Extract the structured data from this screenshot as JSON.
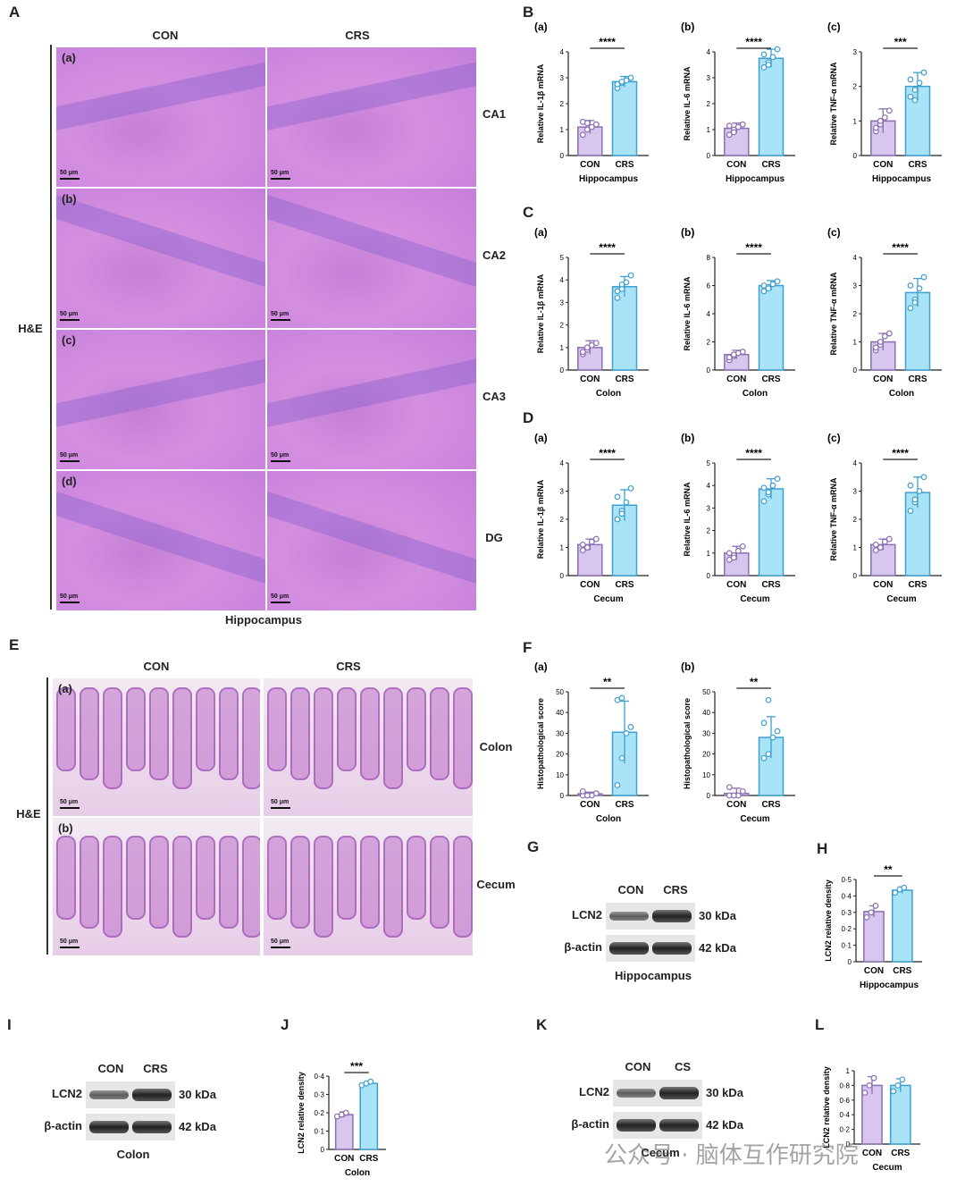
{
  "panel_letters": {
    "A": "A",
    "B": "B",
    "C": "C",
    "D": "D",
    "E": "E",
    "F": "F",
    "G": "G",
    "H": "H",
    "I": "I",
    "J": "J",
    "K": "K",
    "L": "L"
  },
  "panelA": {
    "col_con": "CON",
    "col_crs": "CRS",
    "stain": "H&E",
    "caption": "Hippocampus",
    "rows": [
      {
        "sub": "(a)",
        "region": "CA1"
      },
      {
        "sub": "(b)",
        "region": "CA2"
      },
      {
        "sub": "(c)",
        "region": "CA3"
      },
      {
        "sub": "(d)",
        "region": "DG"
      }
    ],
    "scale": "50 μm"
  },
  "panelE": {
    "col_con": "CON",
    "col_crs": "CRS",
    "stain": "H&E",
    "rows": [
      {
        "sub": "(a)",
        "region": "Colon"
      },
      {
        "sub": "(b)",
        "region": "Cecum"
      }
    ],
    "scale": "50 μm"
  },
  "colors": {
    "con": "#d7c7ee",
    "con_stroke": "#8b6fb0",
    "crs": "#a8e3f7",
    "crs_stroke": "#3f9fd0"
  },
  "charts": [
    {
      "id": "B-a",
      "sub": "(a)",
      "ylabel": "Relative IL-1β mRNA",
      "xlabel": "Hippocampus",
      "ymax": 4,
      "ticks": [
        "0",
        "1",
        "2",
        "3",
        "4"
      ],
      "sig": "****",
      "con": 1.1,
      "crs": 2.85,
      "con_err": 0.25,
      "crs_err": 0.2,
      "con_pts": [
        0.8,
        1.0,
        1.1,
        1.2,
        1.3,
        1.25
      ],
      "crs_pts": [
        2.6,
        2.8,
        2.9,
        3.0,
        2.75,
        2.85
      ]
    },
    {
      "id": "B-b",
      "sub": "(b)",
      "ylabel": "Relative IL-6 mRNA",
      "xlabel": "Hippocampus",
      "ymax": 4,
      "ticks": [
        "0",
        "1",
        "2",
        "3",
        "4"
      ],
      "sig": "****",
      "con": 1.05,
      "crs": 3.75,
      "con_err": 0.2,
      "crs_err": 0.35,
      "con_pts": [
        0.8,
        1.0,
        1.1,
        1.2,
        1.15,
        0.9
      ],
      "crs_pts": [
        3.4,
        3.6,
        3.8,
        4.1,
        3.9,
        3.5
      ]
    },
    {
      "id": "B-c",
      "sub": "(c)",
      "ylabel": "Relative TNF-α mRNA",
      "xlabel": "Hippocampus",
      "ymax": 3,
      "ticks": [
        "0",
        "1",
        "2",
        "3"
      ],
      "sig": "***",
      "con": 1.0,
      "crs": 2.0,
      "con_err": 0.35,
      "crs_err": 0.4,
      "con_pts": [
        0.7,
        0.9,
        1.1,
        1.3,
        0.8,
        1.0
      ],
      "crs_pts": [
        1.7,
        1.9,
        2.1,
        2.4,
        2.2,
        1.6
      ]
    },
    {
      "id": "C-a",
      "sub": "(a)",
      "ylabel": "Relative IL-1β mRNA",
      "xlabel": "Colon",
      "ymax": 5,
      "ticks": [
        "0",
        "1",
        "2",
        "3",
        "4",
        "5"
      ],
      "sig": "****",
      "con": 1.0,
      "crs": 3.7,
      "con_err": 0.3,
      "crs_err": 0.45,
      "con_pts": [
        0.7,
        0.9,
        1.1,
        1.2,
        0.8,
        1.0
      ],
      "crs_pts": [
        3.2,
        3.6,
        3.9,
        4.2,
        3.5,
        3.8
      ]
    },
    {
      "id": "C-b",
      "sub": "(b)",
      "ylabel": "Relative IL-6 mRNA",
      "xlabel": "Colon",
      "ymax": 8,
      "ticks": [
        "0",
        "2",
        "4",
        "6",
        "8"
      ],
      "sig": "****",
      "con": 1.1,
      "crs": 6.0,
      "con_err": 0.3,
      "crs_err": 0.35,
      "con_pts": [
        0.7,
        1.0,
        1.2,
        1.3,
        0.9,
        1.1
      ],
      "crs_pts": [
        5.6,
        5.9,
        6.1,
        6.3,
        6.0,
        5.8
      ]
    },
    {
      "id": "C-c",
      "sub": "(c)",
      "ylabel": "Relative TNF-α mRNA",
      "xlabel": "Colon",
      "ymax": 4,
      "ticks": [
        "0",
        "1",
        "2",
        "3",
        "4"
      ],
      "sig": "****",
      "con": 1.0,
      "crs": 2.75,
      "con_err": 0.3,
      "crs_err": 0.5,
      "con_pts": [
        0.7,
        0.9,
        1.2,
        1.3,
        0.8,
        1.0
      ],
      "crs_pts": [
        2.2,
        2.5,
        2.9,
        3.3,
        3.0,
        2.4
      ]
    },
    {
      "id": "D-a",
      "sub": "(a)",
      "ylabel": "Relative IL-1β mRNA",
      "xlabel": "Cecum",
      "ymax": 4,
      "ticks": [
        "0",
        "1",
        "2",
        "3",
        "4"
      ],
      "sig": "****",
      "con": 1.1,
      "crs": 2.5,
      "con_err": 0.2,
      "crs_err": 0.55,
      "con_pts": [
        0.9,
        1.0,
        1.2,
        1.3,
        1.1,
        1.0
      ],
      "crs_pts": [
        2.0,
        2.3,
        2.6,
        3.1,
        2.8,
        2.2
      ]
    },
    {
      "id": "D-b",
      "sub": "(b)",
      "ylabel": "Relative IL-6 mRNA",
      "xlabel": "Cecum",
      "ymax": 5,
      "ticks": [
        "0",
        "1",
        "2",
        "3",
        "4",
        "5"
      ],
      "sig": "****",
      "con": 1.0,
      "crs": 3.85,
      "con_err": 0.3,
      "crs_err": 0.45,
      "con_pts": [
        0.7,
        0.9,
        1.1,
        1.3,
        1.0,
        0.8
      ],
      "crs_pts": [
        3.3,
        3.6,
        4.0,
        4.3,
        3.9,
        3.7
      ]
    },
    {
      "id": "D-c",
      "sub": "(c)",
      "ylabel": "Relative TNF-α mRNA",
      "xlabel": "Cecum",
      "ymax": 4,
      "ticks": [
        "0",
        "1",
        "2",
        "3",
        "4"
      ],
      "sig": "****",
      "con": 1.1,
      "crs": 2.95,
      "con_err": 0.2,
      "crs_err": 0.55,
      "con_pts": [
        0.9,
        1.0,
        1.2,
        1.3,
        1.1,
        1.0
      ],
      "crs_pts": [
        2.3,
        2.6,
        3.0,
        3.5,
        3.2,
        2.7
      ]
    },
    {
      "id": "F-a",
      "sub": "(a)",
      "ylabel": "Histopathological score",
      "xlabel": "Colon",
      "ymax": 50,
      "ticks": [
        "0",
        "10",
        "20",
        "30",
        "40",
        "50"
      ],
      "sig": "**",
      "con": 0.8,
      "crs": 30.5,
      "con_err": 0.8,
      "crs_err": 15,
      "con_pts": [
        0,
        0,
        0,
        1,
        2,
        0
      ],
      "crs_pts": [
        5,
        18,
        30,
        33,
        46,
        47
      ]
    },
    {
      "id": "F-b",
      "sub": "(b)",
      "ylabel": "Histopathological score",
      "xlabel": "Cecum",
      "ymax": 50,
      "ticks": [
        "0",
        "10",
        "20",
        "30",
        "40",
        "50"
      ],
      "sig": "**",
      "con": 1.0,
      "crs": 28,
      "con_err": 2.5,
      "crs_err": 10,
      "con_pts": [
        0,
        0,
        0,
        2,
        4,
        0
      ],
      "crs_pts": [
        18,
        20,
        28,
        31,
        35,
        46
      ]
    },
    {
      "id": "H",
      "sub": "",
      "ylabel": "LCN2 relative density",
      "xlabel": "Hippocampus",
      "ymax": 0.5,
      "ticks": [
        "0",
        "0·1",
        "0·2",
        "0·3",
        "0·4",
        "0·5"
      ],
      "sig": "**",
      "con": 0.305,
      "crs": 0.435,
      "con_err": 0.035,
      "crs_err": 0.02,
      "con_pts": [
        0.27,
        0.3,
        0.34
      ],
      "crs_pts": [
        0.42,
        0.44,
        0.45
      ]
    },
    {
      "id": "J",
      "sub": "",
      "ylabel": "LCN2 relative density",
      "xlabel": "Colon",
      "ymax": 0.4,
      "ticks": [
        "0",
        "0·1",
        "0·2",
        "0·3",
        "0·4"
      ],
      "sig": "***",
      "con": 0.19,
      "crs": 0.36,
      "con_err": 0.015,
      "crs_err": 0.01,
      "con_pts": [
        0.18,
        0.19,
        0.2
      ],
      "crs_pts": [
        0.35,
        0.36,
        0.37
      ]
    },
    {
      "id": "L",
      "sub": "",
      "ylabel": "LCN2 relative density",
      "xlabel": "Cecum",
      "ymax": 1,
      "ticks": [
        "0",
        "0·2",
        "0·4",
        "0·6",
        "0·8",
        "1"
      ],
      "sig": "",
      "con": 0.8,
      "crs": 0.8,
      "con_err": 0.12,
      "crs_err": 0.09,
      "con_pts": [
        0.7,
        0.8,
        0.9
      ],
      "crs_pts": [
        0.72,
        0.8,
        0.88
      ]
    }
  ],
  "chart_labels": {
    "con": "CON",
    "crs": "CRS"
  },
  "blots": [
    {
      "id": "G",
      "col1": "CON",
      "col2": "CRS",
      "row1": "LCN2",
      "row2": "β-actin",
      "kda1": "30 kDa",
      "kda2": "42 kDa",
      "caption": "Hippocampus"
    },
    {
      "id": "I",
      "col1": "CON",
      "col2": "CRS",
      "row1": "LCN2",
      "row2": "β-actin",
      "kda1": "30 kDa",
      "kda2": "42 kDa",
      "caption": "Colon"
    },
    {
      "id": "K",
      "col1": "CON",
      "col2": "CS",
      "row1": "LCN2",
      "row2": "β-actin",
      "kda1": "30 kDa",
      "kda2": "42 kDa",
      "caption": "Cecum"
    }
  ],
  "watermark": "公众号 · 脑体互作研究院"
}
